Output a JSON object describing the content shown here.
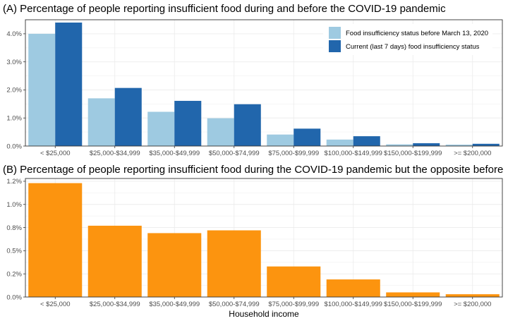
{
  "chart_data": [
    {
      "type": "bar",
      "title": "(A) Percentage of people reporting insufficient food during and before the COVID-19 pandemic",
      "xlabel": "",
      "ylabel": "",
      "categories": [
        "< $25,000",
        "$25,000-$34,999",
        "$35,000-$49,999",
        "$50,000-$74,999",
        "$75,000-$99,999",
        "$100,000-$149,999",
        "$150,000-$199,999",
        ">= $200,000"
      ],
      "yticks": [
        "0.0%",
        "1.0%",
        "2.0%",
        "3.0%",
        "4.0%"
      ],
      "ylim": [
        0,
        4.5
      ],
      "grid": true,
      "legend_position": "top-right",
      "series": [
        {
          "name": "Food insufficiency status before March 13, 2020",
          "color": "#9ecae1",
          "values": [
            4.0,
            1.7,
            1.22,
            0.99,
            0.41,
            0.23,
            0.06,
            0.05
          ]
        },
        {
          "name": "Current (last 7 days) food insufficiency status",
          "color": "#2166ac",
          "values": [
            4.4,
            2.07,
            1.61,
            1.49,
            0.62,
            0.35,
            0.1,
            0.08
          ]
        }
      ]
    },
    {
      "type": "bar",
      "title": "(B) Percentage of people reporting insufficient food during the COVID-19 pandemic but the opposite before",
      "xlabel": "Household income",
      "ylabel": "",
      "categories": [
        "< $25,000",
        "$25,000-$34,999",
        "$35,000-$49,999",
        "$50,000-$74,999",
        "$75,000-$99,999",
        "$100,000-$149,999",
        "$150,000-$199,999",
        ">= $200,000"
      ],
      "yticks": [
        "0.0%",
        "0.2%",
        "0.5%",
        "0.8%",
        "1.0%",
        "1.2%"
      ],
      "ytick_values": [
        0,
        0.25,
        0.5,
        0.75,
        1.0,
        1.25
      ],
      "ylim": [
        0,
        1.28
      ],
      "grid": true,
      "series": [
        {
          "name": "",
          "color": "#fc940f",
          "values": [
            1.23,
            0.77,
            0.69,
            0.72,
            0.33,
            0.19,
            0.05,
            0.03
          ]
        }
      ]
    }
  ]
}
